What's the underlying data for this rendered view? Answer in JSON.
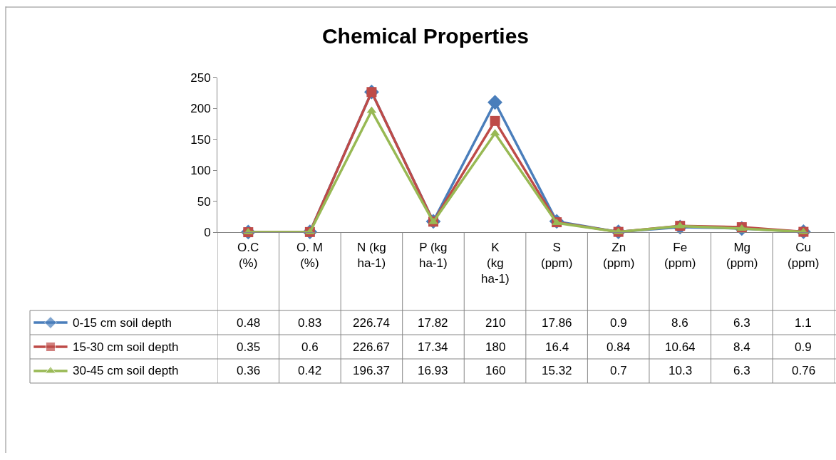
{
  "chart_data": {
    "type": "line",
    "title": "Chemical Properties",
    "categories": [
      "O.C (%)",
      "O. M (%)",
      "N (kg ha-1)",
      "P (kg ha-1)",
      "K  (kg ha-1)",
      "S (ppm)",
      "Zn (ppm)",
      "Fe (ppm)",
      "Mg (ppm)",
      "Cu (ppm)"
    ],
    "series": [
      {
        "name": "0-15 cm soil depth",
        "color": "#4a7ebb",
        "marker": "diamond",
        "values": [
          0.48,
          0.83,
          226.74,
          17.82,
          210,
          17.86,
          0.9,
          8.6,
          6.3,
          1.1
        ]
      },
      {
        "name": "15-30 cm soil depth",
        "color": "#be4b48",
        "marker": "square",
        "values": [
          0.35,
          0.6,
          226.67,
          17.34,
          180,
          16.4,
          0.84,
          10.64,
          8.4,
          0.9
        ]
      },
      {
        "name": "30-45 cm soil depth",
        "color": "#98b954",
        "marker": "triangle",
        "values": [
          0.36,
          0.42,
          196.37,
          16.93,
          160,
          15.32,
          0.7,
          10.3,
          6.3,
          0.76
        ]
      }
    ],
    "ylim": [
      0,
      250
    ],
    "yticks": [
      0,
      50,
      100,
      150,
      200,
      250
    ],
    "legend": "bottom",
    "data_labels": true
  }
}
